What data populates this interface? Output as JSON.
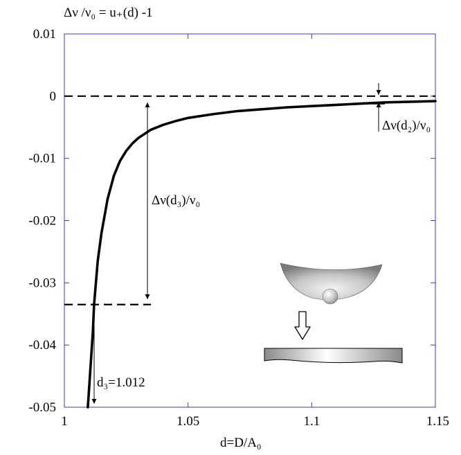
{
  "chart_data": {
    "type": "line",
    "title": "Δν /ν₀ = u₊(d) -1",
    "xlabel": "d=D/A₀",
    "ylabel": "",
    "xlim": [
      1,
      1.15
    ],
    "ylim": [
      -0.05,
      0.01
    ],
    "x_ticks": [
      1,
      1.05,
      1.1,
      1.15
    ],
    "x_tick_labels": [
      "1",
      "1.05",
      "1.1",
      "1.15"
    ],
    "y_ticks": [
      0.01,
      0,
      -0.01,
      -0.02,
      -0.03,
      -0.04,
      -0.05
    ],
    "y_tick_labels": [
      "0.01",
      "0",
      "-0.01",
      "-0.02",
      "-0.03",
      "-0.04",
      "-0.05"
    ],
    "grid": false,
    "series": [
      {
        "x": [
          1.0095,
          1.0115,
          1.012,
          1.0135,
          1.015,
          1.0175,
          1.02,
          1.0225,
          1.025,
          1.0275,
          1.03,
          1.035,
          1.04,
          1.045,
          1.05,
          1.06,
          1.07,
          1.08,
          1.09,
          1.1,
          1.11,
          1.12,
          1.13,
          1.14,
          1.15
        ],
        "y": [
          -0.05,
          -0.038,
          -0.0335,
          -0.0265,
          -0.022,
          -0.0165,
          -0.0128,
          -0.0104,
          -0.0088,
          -0.0076,
          -0.0067,
          -0.0054,
          -0.0046,
          -0.004,
          -0.0035,
          -0.0029,
          -0.0024,
          -0.0021,
          -0.0018,
          -0.0016,
          -0.0014,
          -0.0012,
          -0.001,
          -0.0009,
          -0.0008
        ]
      }
    ],
    "reference_lines": [
      {
        "y": 0,
        "x_from": 1,
        "x_to": 1.15
      },
      {
        "y": -0.0335,
        "x_from": 1,
        "x_to": 1.035
      }
    ],
    "annotations": {
      "d3_label": "d₃=1.012",
      "delta_nu_d3": "Δν(d₃)/ν₀",
      "delta_nu_d2": "Δν(d₂)/ν₀"
    }
  }
}
